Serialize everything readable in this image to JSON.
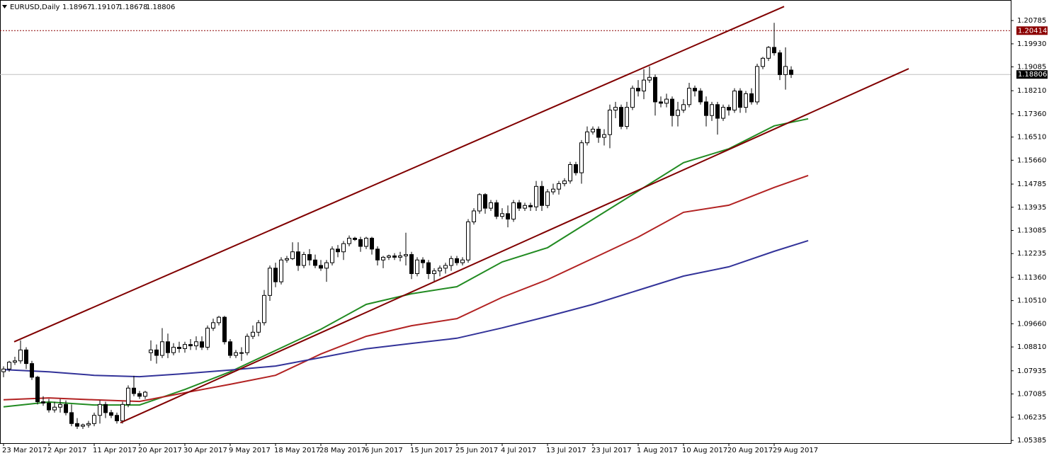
{
  "chart_data": {
    "type": "candlestick",
    "title": "EURUSD,Daily",
    "header_values": [
      1.18967,
      1.19107,
      1.18678,
      1.18806
    ],
    "categories": [
      "23 Mar 2017",
      null,
      null,
      null,
      null,
      null,
      null,
      null,
      "2 Apr 2017",
      null,
      null,
      null,
      null,
      null,
      null,
      null,
      "11 Apr 2017",
      null,
      null,
      null,
      null,
      null,
      null,
      null,
      "20 Apr 2017",
      null,
      null,
      null,
      null,
      null,
      null,
      null,
      "30 Apr 2017",
      null,
      null,
      null,
      null,
      null,
      null,
      null,
      "9 May 2017",
      null,
      null,
      null,
      null,
      null,
      null,
      null,
      "18 May 2017",
      null,
      null,
      null,
      null,
      null,
      null,
      null,
      "28 May 2017",
      null,
      null,
      null,
      null,
      null,
      null,
      null,
      "6 Jun 2017",
      null,
      null,
      null,
      null,
      null,
      null,
      null,
      "15 Jun 2017",
      null,
      null,
      null,
      null,
      null,
      null,
      null,
      "25 Jun 2017",
      null,
      null,
      null,
      null,
      null,
      null,
      null,
      "4 Jul 2017",
      null,
      null,
      null,
      null,
      null,
      null,
      null,
      "13 Jul 2017",
      null,
      null,
      null,
      null,
      null,
      null,
      null,
      "23 Jul 2017",
      null,
      null,
      null,
      null,
      null,
      null,
      null,
      "1 Aug 2017",
      null,
      null,
      null,
      null,
      null,
      null,
      null,
      "10 Aug 2017",
      null,
      null,
      null,
      null,
      null,
      null,
      null,
      "20 Aug 2017",
      null,
      null,
      null,
      null,
      null,
      null,
      null,
      "29 Aug 2017",
      null,
      null,
      null
    ],
    "open": [
      1.079,
      1.08,
      1.0825,
      1.083,
      1.087,
      1.082,
      1.077,
      1.068,
      1.0675,
      1.065,
      1.066,
      1.067,
      1.064,
      1.06,
      1.059,
      1.0595,
      1.06,
      1.063,
      1.067,
      1.064,
      1.063,
      1.061,
      1.067,
      1.073,
      1.071,
      1.07,
      1.086,
      1.087,
      1.085,
      1.09,
      1.086,
      1.088,
      1.0875,
      1.089,
      1.0885,
      1.09,
      1.088,
      1.095,
      1.097,
      1.099,
      1.09,
      1.085,
      1.086,
      1.086,
      1.092,
      1.0935,
      1.097,
      1.107,
      1.117,
      1.112,
      1.12,
      1.1205,
      1.123,
      1.118,
      1.122,
      1.12,
      1.118,
      1.117,
      1.119,
      1.124,
      1.123,
      1.126,
      1.128,
      1.1275,
      1.125,
      1.128,
      1.124,
      1.12,
      1.121,
      1.1215,
      1.121,
      1.1215,
      1.122,
      1.115,
      1.12,
      1.119,
      1.115,
      1.116,
      1.117,
      1.118,
      1.1205,
      1.119,
      1.12,
      1.134,
      1.138,
      1.144,
      1.139,
      1.141,
      1.136,
      1.137,
      1.135,
      1.141,
      1.139,
      1.14,
      1.1395,
      1.147,
      1.14,
      1.145,
      1.146,
      1.148,
      1.149,
      1.155,
      1.152,
      1.163,
      1.167,
      1.168,
      1.165,
      1.166,
      1.175,
      1.176,
      1.169,
      1.176,
      1.183,
      1.182,
      1.186,
      1.187,
      1.178,
      1.1775,
      1.179,
      1.173,
      1.175,
      1.177,
      1.183,
      1.182,
      1.178,
      1.173,
      1.177,
      1.172,
      1.176,
      1.175,
      1.182,
      1.176,
      1.181,
      1.178,
      1.191,
      1.194,
      1.198,
      1.196,
      1.188,
      1.18967
    ],
    "high": [
      1.081,
      1.083,
      1.0845,
      1.0905,
      1.088,
      1.083,
      1.0775,
      1.07,
      1.069,
      1.068,
      1.069,
      1.0685,
      1.067,
      1.062,
      1.06,
      1.061,
      1.064,
      1.0685,
      1.068,
      1.065,
      1.064,
      1.068,
      1.074,
      1.0775,
      1.072,
      1.072,
      1.0905,
      1.089,
      1.095,
      1.093,
      1.0895,
      1.09,
      1.09,
      1.091,
      1.092,
      1.092,
      1.096,
      1.0985,
      1.0995,
      1.0995,
      1.091,
      1.087,
      1.088,
      1.093,
      1.096,
      1.098,
      1.109,
      1.118,
      1.119,
      1.121,
      1.1215,
      1.1265,
      1.1265,
      1.123,
      1.124,
      1.122,
      1.12,
      1.12,
      1.125,
      1.1255,
      1.127,
      1.129,
      1.1285,
      1.1285,
      1.1285,
      1.1285,
      1.125,
      1.1215,
      1.122,
      1.1225,
      1.123,
      1.13,
      1.123,
      1.121,
      1.121,
      1.12,
      1.117,
      1.118,
      1.119,
      1.1215,
      1.1215,
      1.121,
      1.135,
      1.139,
      1.1445,
      1.1445,
      1.142,
      1.142,
      1.139,
      1.14,
      1.142,
      1.142,
      1.141,
      1.141,
      1.149,
      1.149,
      1.146,
      1.148,
      1.149,
      1.15,
      1.156,
      1.156,
      1.164,
      1.169,
      1.169,
      1.169,
      1.168,
      1.177,
      1.178,
      1.177,
      1.178,
      1.184,
      1.186,
      1.19,
      1.191,
      1.188,
      1.18,
      1.181,
      1.18,
      1.178,
      1.179,
      1.185,
      1.184,
      1.183,
      1.18,
      1.178,
      1.178,
      1.177,
      1.177,
      1.183,
      1.183,
      1.182,
      1.183,
      1.192,
      1.1945,
      1.1985,
      1.207,
      1.197,
      1.198,
      1.19107
    ],
    "low": [
      1.077,
      1.079,
      1.0815,
      1.082,
      1.08,
      1.076,
      1.067,
      1.0665,
      1.064,
      1.064,
      1.064,
      1.063,
      1.059,
      1.058,
      1.058,
      1.0585,
      1.059,
      1.06,
      1.062,
      1.062,
      1.06,
      1.06,
      1.066,
      1.07,
      1.069,
      1.069,
      1.083,
      1.082,
      1.084,
      1.084,
      1.085,
      1.086,
      1.086,
      1.087,
      1.087,
      1.087,
      1.087,
      1.094,
      1.096,
      1.089,
      1.084,
      1.084,
      1.083,
      1.085,
      1.091,
      1.092,
      1.096,
      1.105,
      1.11,
      1.111,
      1.119,
      1.12,
      1.116,
      1.117,
      1.118,
      1.117,
      1.116,
      1.112,
      1.118,
      1.121,
      1.12,
      1.125,
      1.127,
      1.123,
      1.124,
      1.122,
      1.118,
      1.117,
      1.12,
      1.12,
      1.1195,
      1.118,
      1.113,
      1.114,
      1.117,
      1.113,
      1.112,
      1.114,
      1.115,
      1.116,
      1.118,
      1.118,
      1.119,
      1.133,
      1.137,
      1.137,
      1.138,
      1.135,
      1.135,
      1.132,
      1.134,
      1.138,
      1.138,
      1.138,
      1.138,
      1.138,
      1.139,
      1.144,
      1.144,
      1.147,
      1.148,
      1.151,
      1.148,
      1.162,
      1.166,
      1.163,
      1.162,
      1.161,
      1.172,
      1.168,
      1.168,
      1.175,
      1.18,
      1.179,
      1.185,
      1.173,
      1.176,
      1.176,
      1.169,
      1.169,
      1.174,
      1.176,
      1.18,
      1.177,
      1.169,
      1.171,
      1.166,
      1.171,
      1.173,
      1.174,
      1.174,
      1.174,
      1.177,
      1.177,
      1.19,
      1.193,
      1.195,
      1.186,
      1.1825,
      1.18678
    ],
    "close": [
      1.08,
      1.0825,
      1.083,
      1.087,
      1.082,
      1.077,
      1.068,
      1.0675,
      1.065,
      1.066,
      1.067,
      1.064,
      1.06,
      1.059,
      1.0595,
      1.06,
      1.063,
      1.067,
      1.064,
      1.063,
      1.061,
      1.067,
      1.073,
      1.071,
      1.07,
      1.0715,
      1.087,
      1.085,
      1.09,
      1.086,
      1.088,
      1.0875,
      1.089,
      1.0885,
      1.09,
      1.088,
      1.095,
      1.097,
      1.099,
      1.09,
      1.085,
      1.086,
      1.086,
      1.092,
      1.0935,
      1.097,
      1.107,
      1.117,
      1.112,
      1.12,
      1.1205,
      1.123,
      1.118,
      1.122,
      1.12,
      1.118,
      1.117,
      1.119,
      1.124,
      1.123,
      1.126,
      1.128,
      1.1275,
      1.125,
      1.128,
      1.124,
      1.12,
      1.121,
      1.1215,
      1.121,
      1.1215,
      1.122,
      1.115,
      1.12,
      1.119,
      1.115,
      1.116,
      1.117,
      1.118,
      1.1205,
      1.119,
      1.12,
      1.134,
      1.138,
      1.144,
      1.139,
      1.141,
      1.136,
      1.137,
      1.135,
      1.141,
      1.139,
      1.14,
      1.1395,
      1.147,
      1.14,
      1.145,
      1.146,
      1.148,
      1.149,
      1.155,
      1.152,
      1.163,
      1.167,
      1.168,
      1.165,
      1.166,
      1.175,
      1.176,
      1.169,
      1.176,
      1.183,
      1.182,
      1.186,
      1.187,
      1.178,
      1.1775,
      1.179,
      1.173,
      1.175,
      1.177,
      1.183,
      1.182,
      1.178,
      1.173,
      1.177,
      1.172,
      1.176,
      1.175,
      1.182,
      1.176,
      1.181,
      1.178,
      1.191,
      1.194,
      1.198,
      1.196,
      1.188,
      1.191,
      1.18806
    ],
    "moving_averages": [
      {
        "color": "#228b22",
        "x": [
          0,
          8,
          16,
          24,
          32,
          40,
          48,
          56,
          64,
          72,
          80,
          88,
          96,
          104,
          112,
          120,
          128,
          136,
          142
        ],
        "values": [
          1.0661,
          1.0679,
          1.0668,
          1.0668,
          1.0725,
          1.079,
          1.0868,
          1.0946,
          1.1037,
          1.1076,
          1.1102,
          1.1193,
          1.1245,
          1.1349,
          1.1453,
          1.1557,
          1.1608,
          1.1692,
          1.1718
        ]
      },
      {
        "color": "#b22222",
        "x": [
          0,
          8,
          16,
          24,
          32,
          40,
          48,
          56,
          64,
          72,
          80,
          88,
          96,
          104,
          112,
          120,
          128,
          136,
          142
        ],
        "values": [
          1.0687,
          1.0694,
          1.0687,
          1.0681,
          1.0713,
          1.0744,
          1.0777,
          1.0855,
          1.092,
          1.0959,
          1.0985,
          1.1063,
          1.1128,
          1.1206,
          1.1284,
          1.1375,
          1.1401,
          1.1466,
          1.151
        ]
      },
      {
        "color": "#333399",
        "x": [
          0,
          8,
          16,
          24,
          32,
          40,
          48,
          56,
          64,
          72,
          80,
          88,
          96,
          104,
          112,
          120,
          128,
          136,
          142
        ],
        "values": [
          1.0798,
          1.079,
          1.0777,
          1.0772,
          1.0783,
          1.0796,
          1.0811,
          1.0842,
          1.0874,
          1.0894,
          1.0913,
          1.0951,
          1.0993,
          1.1037,
          1.1089,
          1.1141,
          1.1175,
          1.1232,
          1.1271
        ]
      }
    ],
    "trendlines": [
      {
        "color": "#800000",
        "x": [
          1.875,
          137.75
        ],
        "values": [
          1.09,
          1.213
        ]
      },
      {
        "color": "#800000",
        "x": [
          20.625,
          159.75
        ],
        "values": [
          1.0603,
          1.1902
        ]
      }
    ],
    "price_lines": [
      {
        "value": 1.20414,
        "color": "#8b0000",
        "dashed": true
      },
      {
        "value": 1.18806,
        "color": "#000000",
        "dashed": false
      }
    ],
    "xlim": [
      -0.625,
      177.75
    ],
    "ylim": [
      1.05281,
      1.21538
    ],
    "yticks": [
      {
        "value": 1.0538,
        "label": "1.05385"
      },
      1.06235,
      1.07085,
      1.07935,
      {
        "value": 1.0881,
        "label": "1.08810"
      },
      {
        "value": 1.0966,
        "label": "1.09660"
      },
      {
        "value": 1.1051,
        "label": "1.10510"
      },
      {
        "value": 1.1136,
        "label": "1.11360"
      },
      1.12235,
      1.13085,
      1.13935,
      1.14785,
      {
        "value": 1.1566,
        "label": "1.15660"
      },
      {
        "value": 1.1651,
        "label": "1.16510"
      },
      {
        "value": 1.1736,
        "label": "1.17360"
      },
      {
        "value": 1.1821,
        "label": "1.18210"
      },
      1.19085,
      {
        "value": 1.1993,
        "label": "1.19930"
      },
      1.20785
    ]
  }
}
